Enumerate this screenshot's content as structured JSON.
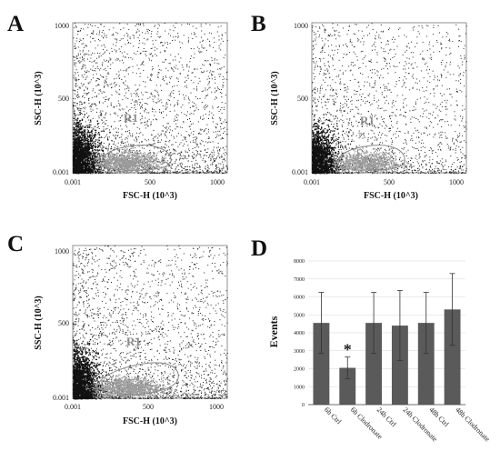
{
  "chart_data": [
    {
      "panel": "A",
      "type": "scatter",
      "xlabel": "FSC-H (10^3)",
      "ylabel": "SSC-H (10^3)",
      "xticks": [
        "0.001",
        "500",
        "1000"
      ],
      "yticks": [
        "0.001",
        "500",
        "1000"
      ],
      "gate": "R1",
      "density": 1.0
    },
    {
      "panel": "B",
      "type": "scatter",
      "xlabel": "FSC-H (10^3)",
      "ylabel": "SSC-H (10^3)",
      "xticks": [
        "0.001",
        "500",
        "1000"
      ],
      "yticks": [
        "0.001",
        "500",
        "1000"
      ],
      "gate": "R1",
      "density": 0.75
    },
    {
      "panel": "C",
      "type": "scatter",
      "xlabel": "FSC-H (10^3)",
      "ylabel": "SSC-H (10^3)",
      "xticks": [
        "0.001",
        "500",
        "1000"
      ],
      "yticks": [
        "0.001",
        "500",
        "1000"
      ],
      "gate": "R1",
      "density": 1.0
    },
    {
      "panel": "D",
      "type": "bar",
      "ylabel": "Events",
      "ylim": [
        0,
        8000
      ],
      "yticks": [
        "0",
        "1000",
        "2000",
        "3000",
        "4000",
        "5000",
        "6000",
        "7000",
        "8000"
      ],
      "categories": [
        "6h Ctrl",
        "6h Clodronate",
        "24h Ctrl",
        "24h Clodronate",
        "48h Ctrl",
        "48h Clodronate"
      ],
      "values": [
        4550,
        2050,
        4550,
        4400,
        4550,
        5300
      ],
      "errors": [
        1700,
        600,
        1700,
        1950,
        1700,
        2000
      ],
      "annotations": [
        {
          "category": "6h Clodronate",
          "text": "*"
        }
      ],
      "grid": true,
      "bar_color": "#5a5a5a"
    }
  ]
}
